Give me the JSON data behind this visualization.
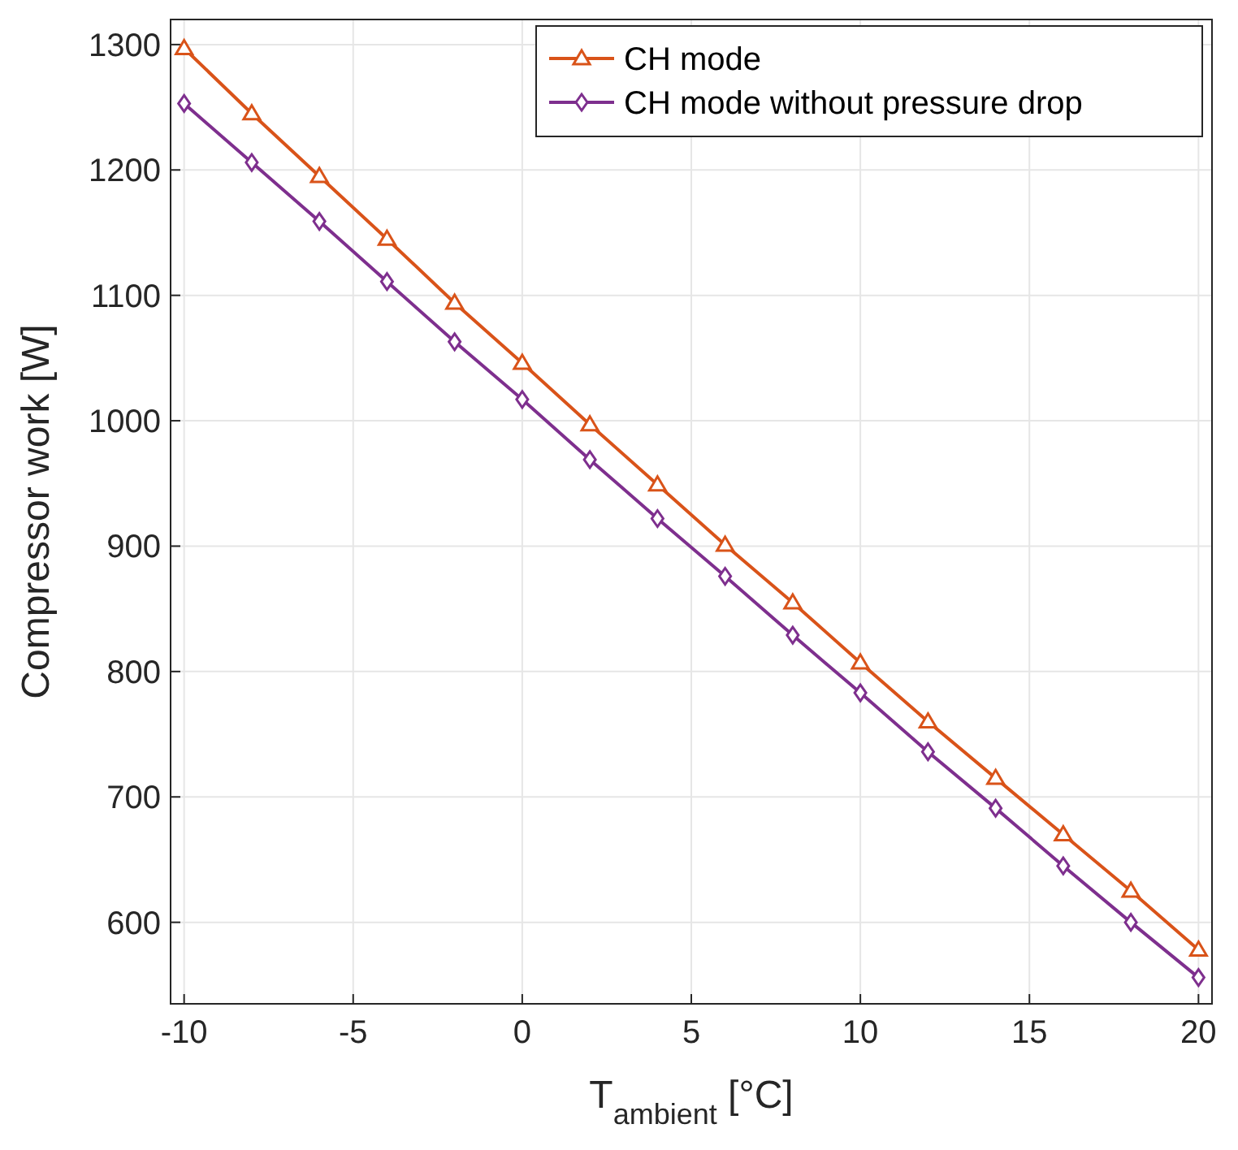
{
  "chart_data": {
    "type": "line",
    "xlabel": "T$_{ambient}$ [°C]",
    "ylabel": "Compressor work [W]",
    "x": [
      -10,
      -8,
      -6,
      -4,
      -2,
      0,
      2,
      4,
      6,
      8,
      10,
      12,
      14,
      16,
      18,
      20
    ],
    "xlim": [
      -10.4,
      20.4
    ],
    "xticks": [
      -10,
      -5,
      0,
      5,
      10,
      15,
      20
    ],
    "ylim": [
      535,
      1320
    ],
    "yticks": [
      600,
      700,
      800,
      900,
      1000,
      1100,
      1200,
      1300
    ],
    "grid": true,
    "legend": "top right",
    "series": [
      {
        "name": "CH mode",
        "color": "#d95319",
        "marker": "triangle",
        "values": [
          1297,
          1245,
          1195,
          1145,
          1094,
          1046,
          997,
          949,
          901,
          855,
          807,
          760,
          715,
          670,
          625,
          578
        ]
      },
      {
        "name": "CH mode without pressure drop",
        "color": "#7e2f8e",
        "marker": "diamond",
        "values": [
          1253,
          1206,
          1159,
          1111,
          1063,
          1017,
          969,
          922,
          876,
          829,
          783,
          736,
          691,
          645,
          600,
          556
        ]
      }
    ]
  }
}
